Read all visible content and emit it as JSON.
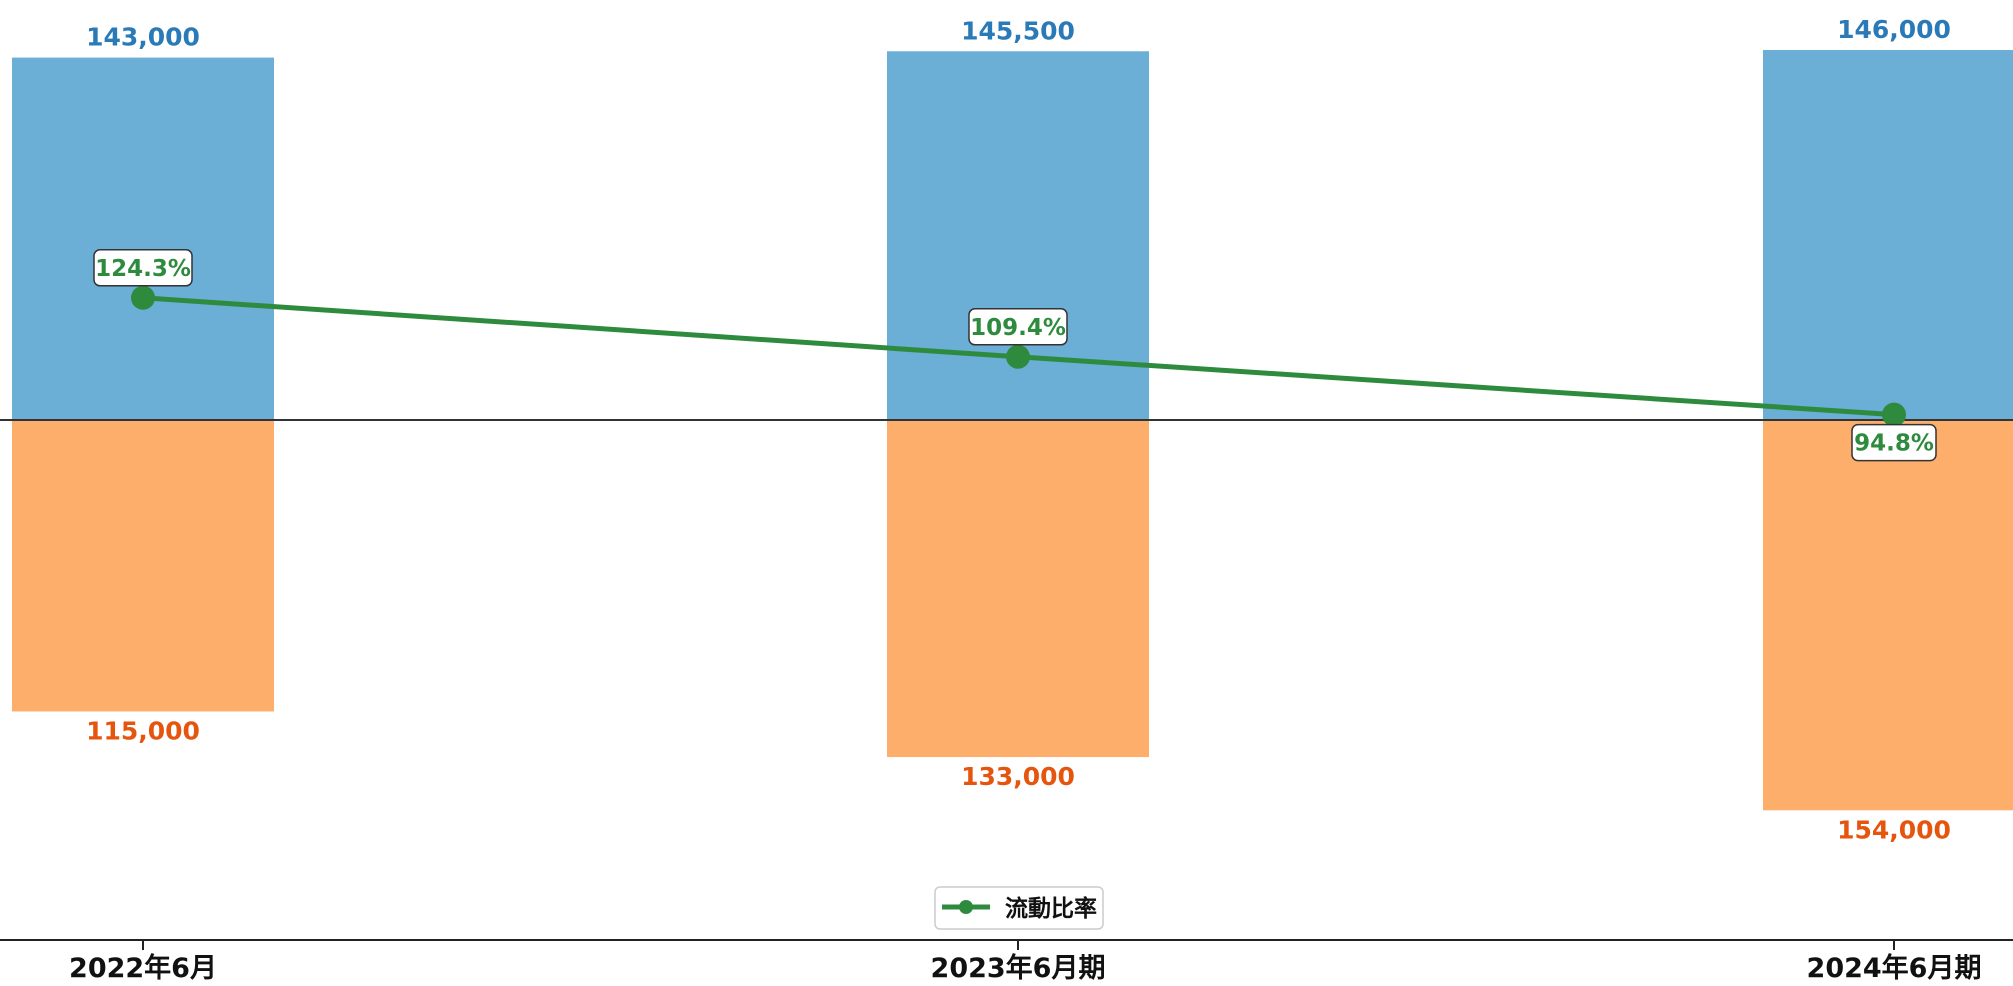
{
  "chart_data": {
    "type": "bar",
    "categories": [
      "2022年6月",
      "2023年6月期",
      "2024年6月期"
    ],
    "series": [
      {
        "values": [
          143000,
          145500,
          146000
        ],
        "color": "#6baed6",
        "label_color": "#2a7ab8"
      },
      {
        "values": [
          -115000,
          -133000,
          -154000
        ],
        "color": "#fdae6b",
        "label_color": "#e6550d"
      },
      {
        "name": "流動比率",
        "type": "line",
        "values": [
          124.3,
          109.4,
          94.8
        ],
        "color": "#2e8b3e"
      }
    ],
    "bar_labels_top": [
      "143,000",
      "145,500",
      "146,000"
    ],
    "bar_labels_bottom": [
      "115,000",
      "133,000",
      "154,000"
    ],
    "line_labels": [
      "124.3%",
      "109.4%",
      "94.8%"
    ],
    "legend": {
      "label": "流動比率",
      "position": "bottom-center"
    },
    "grid": false
  }
}
